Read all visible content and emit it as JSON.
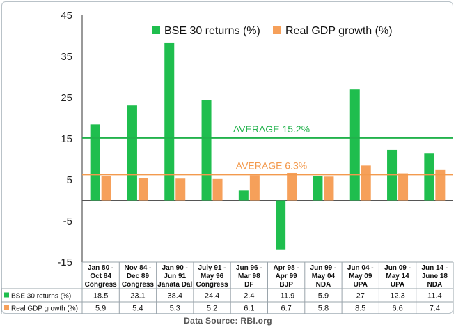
{
  "source": "Data Source: RBI.org",
  "colors": {
    "bse": "#1fbe4e",
    "gdp": "#f6a05a",
    "avg_bse": "#22b24c",
    "avg_gdp": "#f39a4e"
  },
  "chart_data": {
    "type": "bar",
    "title": "",
    "xlabel": "",
    "ylabel": "",
    "ylim": [
      -15,
      45
    ],
    "yticks": [
      "45",
      "35",
      "25",
      "15",
      "5",
      "-5",
      "-15"
    ],
    "yticks_values": [
      45,
      35,
      25,
      15,
      5,
      -5,
      -15
    ],
    "legend_position": "top",
    "categories": [
      [
        "Jan 80 -",
        "Oct 84",
        "Congress"
      ],
      [
        "Nov 84 -",
        "Dec 89",
        "Congress"
      ],
      [
        "Jan 90 -",
        "Jun 91",
        "Janata Dal"
      ],
      [
        "July 91 -",
        "May 96",
        "Congress"
      ],
      [
        "Jun 96 -",
        "Mar 98",
        "DF"
      ],
      [
        "Apr 98 -",
        "Apr 99",
        "BJP"
      ],
      [
        "Jun 99 -",
        "May 04",
        "NDA"
      ],
      [
        "Jun 04 -",
        "May 09",
        "UPA"
      ],
      [
        "Jun 09 -",
        "May 14",
        "UPA"
      ],
      [
        "Jun 14 -",
        "June 18",
        "NDA"
      ]
    ],
    "series": [
      {
        "name": "BSE 30 returns (%)",
        "values": [
          18.5,
          23.1,
          38.4,
          24.4,
          2.4,
          -11.9,
          5.9,
          27,
          12.3,
          11.4
        ],
        "labels": [
          "18.5",
          "23.1",
          "38.4",
          "24.4",
          "2.4",
          "-11.9",
          "5.9",
          "27",
          "12.3",
          "11.4"
        ]
      },
      {
        "name": "Real GDP growth (%)",
        "values": [
          5.9,
          5.4,
          5.3,
          5.2,
          6.1,
          6.7,
          5.8,
          8.5,
          6.6,
          7.4
        ],
        "labels": [
          "5.9",
          "5.4",
          "5.3",
          "5.2",
          "6.1",
          "6.7",
          "5.8",
          "8.5",
          "6.6",
          "7.4"
        ]
      }
    ],
    "averages": [
      {
        "label": "AVERAGE 15.2%",
        "value": 15.2
      },
      {
        "label": "AVERAGE 6.3%",
        "value": 6.3
      }
    ]
  }
}
